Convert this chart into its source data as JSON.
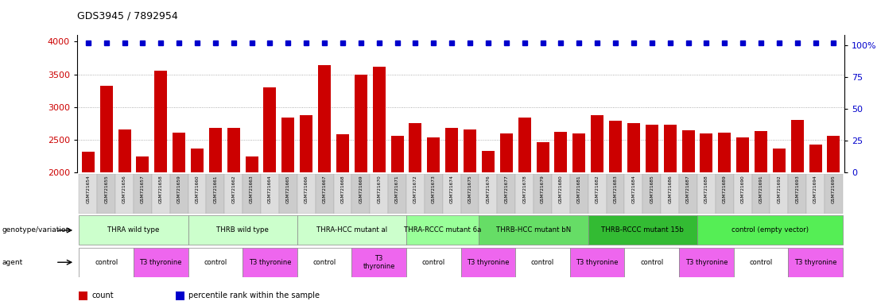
{
  "title": "GDS3945 / 7892954",
  "samples": [
    "GSM721654",
    "GSM721655",
    "GSM721656",
    "GSM721657",
    "GSM721658",
    "GSM721659",
    "GSM721660",
    "GSM721661",
    "GSM721662",
    "GSM721663",
    "GSM721664",
    "GSM721665",
    "GSM721666",
    "GSM721667",
    "GSM721668",
    "GSM721669",
    "GSM721670",
    "GSM721671",
    "GSM721672",
    "GSM721673",
    "GSM721674",
    "GSM721675",
    "GSM721676",
    "GSM721677",
    "GSM721678",
    "GSM721679",
    "GSM721680",
    "GSM721681",
    "GSM721682",
    "GSM721683",
    "GSM721684",
    "GSM721685",
    "GSM721686",
    "GSM721687",
    "GSM721688",
    "GSM721689",
    "GSM721690",
    "GSM721691",
    "GSM721692",
    "GSM721693",
    "GSM721694",
    "GSM721695"
  ],
  "counts": [
    2320,
    3320,
    2650,
    2240,
    3560,
    2610,
    2370,
    2680,
    2680,
    2240,
    3300,
    2840,
    2880,
    3640,
    2580,
    3500,
    3620,
    2560,
    2750,
    2540,
    2680,
    2650,
    2330,
    2590,
    2840,
    2460,
    2620,
    2590,
    2880,
    2790,
    2750,
    2730,
    2730,
    2640,
    2600,
    2610,
    2540,
    2630,
    2360,
    2800,
    2430,
    2560
  ],
  "ylim_left": [
    2000,
    4100
  ],
  "ylim_right": [
    0,
    108
  ],
  "yticks_left": [
    2000,
    2500,
    3000,
    3500,
    4000
  ],
  "yticks_right": [
    0,
    25,
    50,
    75,
    100
  ],
  "bar_color": "#cc0000",
  "percentile_color": "#0000cc",
  "bar_baseline": 2000,
  "genotype_groups": [
    {
      "label": "THRA wild type",
      "start": 0,
      "end": 5,
      "color": "#ccffcc"
    },
    {
      "label": "THRB wild type",
      "start": 6,
      "end": 11,
      "color": "#ccffcc"
    },
    {
      "label": "THRA-HCC mutant al",
      "start": 12,
      "end": 17,
      "color": "#ccffcc"
    },
    {
      "label": "THRA-RCCC mutant 6a",
      "start": 18,
      "end": 21,
      "color": "#99ff99"
    },
    {
      "label": "THRB-HCC mutant bN",
      "start": 22,
      "end": 27,
      "color": "#66dd66"
    },
    {
      "label": "THRB-RCCC mutant 15b",
      "start": 28,
      "end": 33,
      "color": "#33bb33"
    },
    {
      "label": "control (empty vector)",
      "start": 34,
      "end": 41,
      "color": "#55ee55"
    }
  ],
  "agent_groups": [
    {
      "label": "control",
      "start": 0,
      "end": 2,
      "color": "#ffffff"
    },
    {
      "label": "T3 thyronine",
      "start": 3,
      "end": 5,
      "color": "#ee66ee"
    },
    {
      "label": "control",
      "start": 6,
      "end": 8,
      "color": "#ffffff"
    },
    {
      "label": "T3 thyronine",
      "start": 9,
      "end": 11,
      "color": "#ee66ee"
    },
    {
      "label": "control",
      "start": 12,
      "end": 14,
      "color": "#ffffff"
    },
    {
      "label": "T3\nthyronine",
      "start": 15,
      "end": 17,
      "color": "#ee66ee"
    },
    {
      "label": "control",
      "start": 18,
      "end": 20,
      "color": "#ffffff"
    },
    {
      "label": "T3 thyronine",
      "start": 21,
      "end": 23,
      "color": "#ee66ee"
    },
    {
      "label": "control",
      "start": 24,
      "end": 26,
      "color": "#ffffff"
    },
    {
      "label": "T3 thyronine",
      "start": 27,
      "end": 29,
      "color": "#ee66ee"
    },
    {
      "label": "control",
      "start": 30,
      "end": 32,
      "color": "#ffffff"
    },
    {
      "label": "T3 thyronine",
      "start": 33,
      "end": 35,
      "color": "#ee66ee"
    },
    {
      "label": "control",
      "start": 36,
      "end": 38,
      "color": "#ffffff"
    },
    {
      "label": "T3 thyronine",
      "start": 39,
      "end": 41,
      "color": "#ee66ee"
    }
  ],
  "legend_items": [
    {
      "label": "count",
      "color": "#cc0000"
    },
    {
      "label": "percentile rank within the sample",
      "color": "#0000cc"
    }
  ],
  "background_color": "#ffffff",
  "tick_label_color_left": "#cc0000",
  "tick_label_color_right": "#0000cc"
}
